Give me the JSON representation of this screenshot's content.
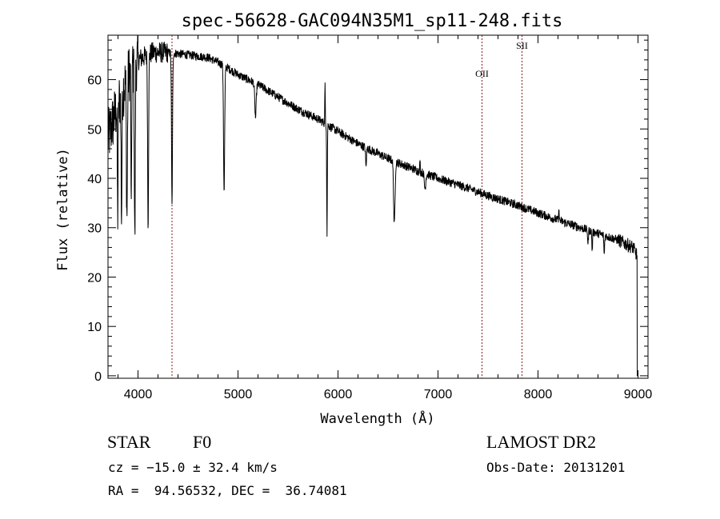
{
  "chart_data": {
    "type": "line",
    "title": "spec-56628-GAC094N35M1_sp11-248.fits",
    "xlabel": "Wavelength (Å)",
    "ylabel": "Flux (relative)",
    "xlim": [
      3700,
      9100
    ],
    "ylim": [
      -0.5,
      69
    ],
    "xticks": [
      4000,
      5000,
      6000,
      7000,
      8000,
      9000
    ],
    "yticks": [
      0,
      10,
      20,
      30,
      40,
      50,
      60
    ],
    "grid": false,
    "line_color": "#000000",
    "marker_color": "#8b1a1a",
    "markers": [
      {
        "x": 4340,
        "label": ""
      },
      {
        "x": 7440,
        "label": "OII"
      },
      {
        "x": 7840,
        "label": "SII"
      }
    ],
    "continuum": [
      [
        3700,
        48
      ],
      [
        3800,
        55
      ],
      [
        3900,
        61
      ],
      [
        4000,
        64
      ],
      [
        4150,
        65.5
      ],
      [
        4300,
        65.5
      ],
      [
        4500,
        65
      ],
      [
        4700,
        64.5
      ],
      [
        4850,
        63
      ],
      [
        5000,
        61
      ],
      [
        5200,
        59
      ],
      [
        5400,
        56.5
      ],
      [
        5600,
        54
      ],
      [
        5800,
        52
      ],
      [
        6000,
        49.5
      ],
      [
        6200,
        47
      ],
      [
        6500,
        44
      ],
      [
        6800,
        41.5
      ],
      [
        7000,
        40
      ],
      [
        7300,
        38
      ],
      [
        7500,
        36.5
      ],
      [
        7800,
        34.5
      ],
      [
        8000,
        33
      ],
      [
        8200,
        31.5
      ],
      [
        8500,
        29.5
      ],
      [
        8800,
        27.5
      ],
      [
        8950,
        26
      ],
      [
        9000,
        24
      ]
    ],
    "absorption_lines": [
      {
        "x": 3797,
        "depth": 22,
        "width": 6
      },
      {
        "x": 3835,
        "depth": 25,
        "width": 6
      },
      {
        "x": 3889,
        "depth": 28,
        "width": 7
      },
      {
        "x": 3933,
        "depth": 30,
        "width": 5
      },
      {
        "x": 3968,
        "depth": 36,
        "width": 6
      },
      {
        "x": 4101,
        "depth": 34,
        "width": 7
      },
      {
        "x": 4340,
        "depth": 31,
        "width": 7
      },
      {
        "x": 4861,
        "depth": 26,
        "width": 8
      },
      {
        "x": 5175,
        "depth": 7,
        "width": 10
      },
      {
        "x": 5890,
        "depth": 22,
        "width": 4
      },
      {
        "x": 6280,
        "depth": 4,
        "width": 6
      },
      {
        "x": 6563,
        "depth": 13,
        "width": 10
      },
      {
        "x": 6870,
        "depth": 3,
        "width": 10
      },
      {
        "x": 8500,
        "depth": 3,
        "width": 5
      },
      {
        "x": 8542,
        "depth": 4,
        "width": 5
      },
      {
        "x": 8662,
        "depth": 4,
        "width": 5
      }
    ],
    "emission_spikes": [
      {
        "x": 5870,
        "height": 8
      },
      {
        "x": 6820,
        "height": 3
      },
      {
        "x": 8210,
        "height": 3
      }
    ]
  },
  "info": {
    "object_class": "STAR",
    "subclass": "F0",
    "survey": "LAMOST DR2",
    "redshift": "cz = −15.0 ± 32.4 km/s",
    "obs_date": "Obs-Date: 20131201",
    "coords": "RA =  94.56532, DEC =  36.74081"
  }
}
